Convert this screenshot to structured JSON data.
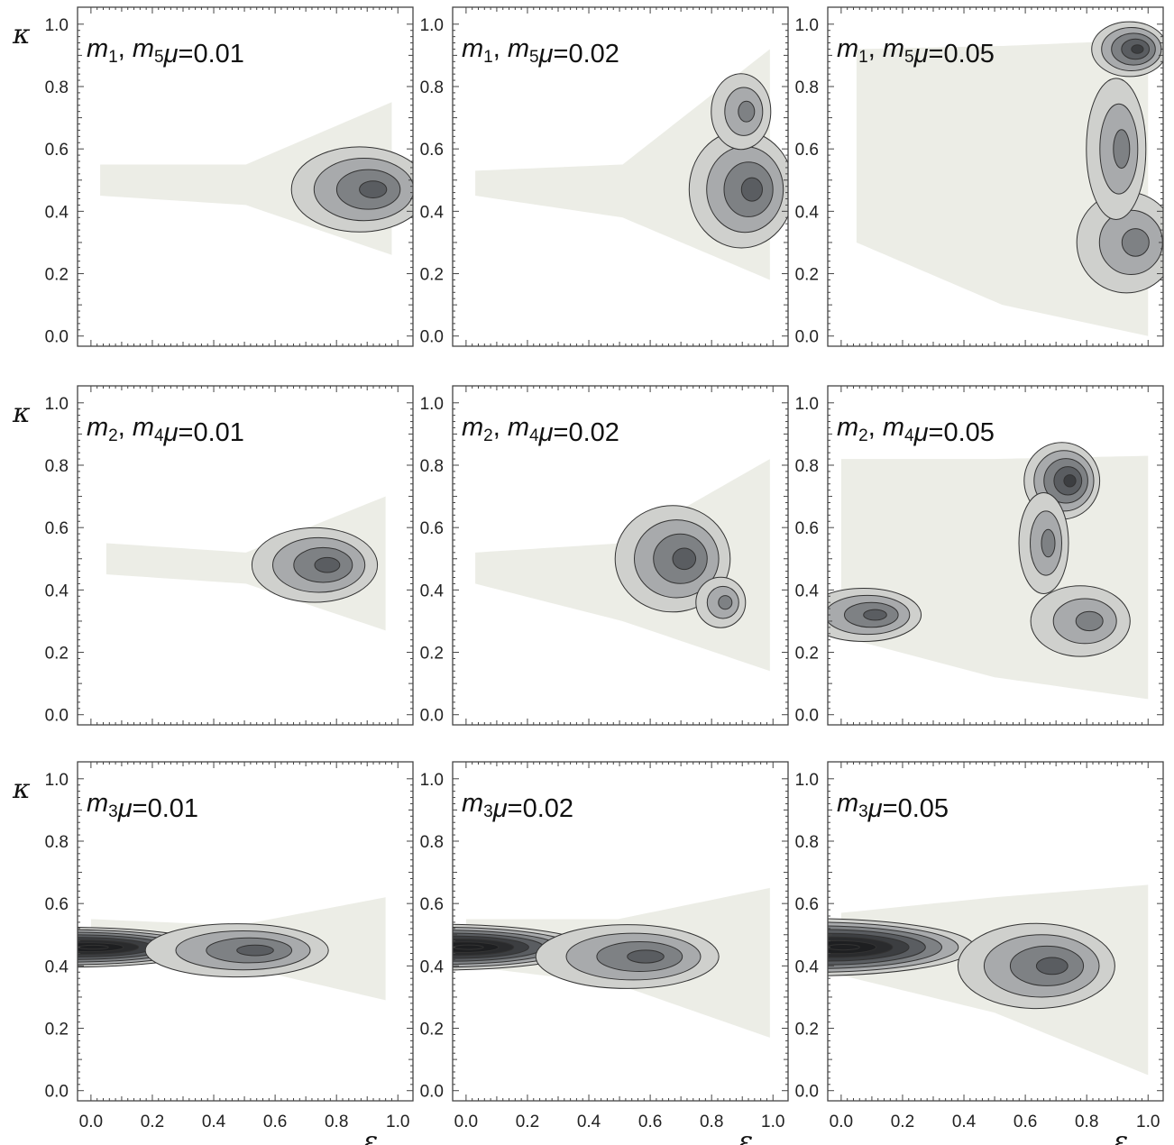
{
  "chart_data": {
    "type": "contour",
    "layout": "3x3 grid of filled contour panels",
    "xlabel": "ε",
    "ylabel": "κ",
    "xlim": [
      0,
      1
    ],
    "ylim": [
      0,
      1
    ],
    "x_ticks": [
      "0.0",
      "0.2",
      "0.4",
      "0.6",
      "0.8",
      "1.0"
    ],
    "y_ticks": [
      "0.0",
      "0.2",
      "0.4",
      "0.6",
      "0.8",
      "1.0"
    ],
    "colors": {
      "background": "#ffffff",
      "level_fills": [
        "#ecede6",
        "#cfd0cd",
        "#a8aaac",
        "#7e8184",
        "#5a5d61",
        "#3c3e41",
        "#2a2b2d",
        "#1e1f21"
      ],
      "contour_line": "#333333",
      "frame": "#444444"
    },
    "panels": [
      {
        "row": 0,
        "col": 0,
        "masses": "m1, m5",
        "mu_label": "μ=0.01",
        "show_y_label": true,
        "show_x_label": false,
        "support": {
          "x_range": [
            0.03,
            0.98
          ],
          "y_top": [
            0.55,
            0.55,
            0.75
          ],
          "y_bottom": [
            0.45,
            0.42,
            0.26
          ]
        },
        "peaks": [
          {
            "x": 0.93,
            "y": 0.47,
            "levels": 4,
            "sx": 0.26,
            "sy": 0.16
          }
        ]
      },
      {
        "row": 0,
        "col": 1,
        "masses": "m1, m5",
        "mu_label": "μ=0.02",
        "show_y_label": false,
        "show_x_label": false,
        "support": {
          "x_range": [
            0.03,
            0.99
          ],
          "y_top": [
            0.53,
            0.55,
            0.92
          ],
          "y_bottom": [
            0.45,
            0.38,
            0.18
          ]
        },
        "peaks": [
          {
            "x": 0.94,
            "y": 0.47,
            "levels": 4,
            "sx": 0.2,
            "sy": 0.22
          },
          {
            "x": 0.92,
            "y": 0.72,
            "levels": 3,
            "sx": 0.12,
            "sy": 0.15
          }
        ]
      },
      {
        "row": 0,
        "col": 2,
        "masses": "m1, m5",
        "mu_label": "μ=0.05",
        "show_y_label": false,
        "show_x_label": false,
        "support": {
          "x_range": [
            0.05,
            1.0
          ],
          "y_top": [
            0.92,
            0.93,
            0.95
          ],
          "y_bottom": [
            0.3,
            0.1,
            0.0
          ]
        },
        "peaks": [
          {
            "x": 0.97,
            "y": 0.92,
            "levels": 5,
            "sx": 0.14,
            "sy": 0.1
          },
          {
            "x": 0.97,
            "y": 0.3,
            "levels": 3,
            "sx": 0.2,
            "sy": 0.2
          },
          {
            "x": 0.92,
            "y": 0.6,
            "levels": 3,
            "sx": 0.12,
            "sy": 0.28
          }
        ]
      },
      {
        "row": 1,
        "col": 0,
        "masses": "m2, m4",
        "mu_label": "μ=0.01",
        "show_y_label": true,
        "show_x_label": false,
        "support": {
          "x_range": [
            0.05,
            0.96
          ],
          "y_top": [
            0.55,
            0.52,
            0.7
          ],
          "y_bottom": [
            0.45,
            0.42,
            0.27
          ]
        },
        "peaks": [
          {
            "x": 0.78,
            "y": 0.48,
            "levels": 4,
            "sx": 0.24,
            "sy": 0.14
          }
        ]
      },
      {
        "row": 1,
        "col": 1,
        "masses": "m2, m4",
        "mu_label": "μ=0.02",
        "show_y_label": false,
        "show_x_label": false,
        "support": {
          "x_range": [
            0.03,
            0.99
          ],
          "y_top": [
            0.52,
            0.55,
            0.82
          ],
          "y_bottom": [
            0.42,
            0.3,
            0.14
          ]
        },
        "peaks": [
          {
            "x": 0.72,
            "y": 0.5,
            "levels": 4,
            "sx": 0.22,
            "sy": 0.2
          },
          {
            "x": 0.85,
            "y": 0.36,
            "levels": 3,
            "sx": 0.1,
            "sy": 0.1
          }
        ]
      },
      {
        "row": 1,
        "col": 2,
        "masses": "m2, m4",
        "mu_label": "μ=0.05",
        "show_y_label": false,
        "show_x_label": false,
        "support": {
          "x_range": [
            0.0,
            1.0
          ],
          "y_top": [
            0.82,
            0.82,
            0.83
          ],
          "y_bottom": [
            0.25,
            0.12,
            0.05
          ]
        },
        "peaks": [
          {
            "x": 0.75,
            "y": 0.75,
            "levels": 5,
            "sx": 0.14,
            "sy": 0.14
          },
          {
            "x": 0.12,
            "y": 0.32,
            "levels": 4,
            "sx": 0.22,
            "sy": 0.1
          },
          {
            "x": 0.82,
            "y": 0.3,
            "levels": 3,
            "sx": 0.2,
            "sy": 0.14
          },
          {
            "x": 0.68,
            "y": 0.55,
            "levels": 3,
            "sx": 0.1,
            "sy": 0.2
          }
        ]
      },
      {
        "row": 2,
        "col": 0,
        "masses": "m3",
        "mu_label": "μ=0.01",
        "show_y_label": true,
        "show_x_label": true,
        "support": {
          "x_range": [
            0.0,
            0.96
          ],
          "y_top": [
            0.55,
            0.53,
            0.62
          ],
          "y_bottom": [
            0.42,
            0.4,
            0.29
          ]
        },
        "peaks": [
          {
            "x": 0.02,
            "y": 0.46,
            "levels": 8,
            "sx": 0.55,
            "sy": 0.07
          },
          {
            "x": 0.55,
            "y": 0.45,
            "levels": 4,
            "sx": 0.35,
            "sy": 0.1
          }
        ]
      },
      {
        "row": 2,
        "col": 1,
        "masses": "m3",
        "mu_label": "μ=0.02",
        "show_y_label": false,
        "show_x_label": true,
        "support": {
          "x_range": [
            0.0,
            0.99
          ],
          "y_top": [
            0.55,
            0.55,
            0.65
          ],
          "y_bottom": [
            0.4,
            0.34,
            0.17
          ]
        },
        "peaks": [
          {
            "x": 0.02,
            "y": 0.46,
            "levels": 8,
            "sx": 0.55,
            "sy": 0.08
          },
          {
            "x": 0.6,
            "y": 0.43,
            "levels": 4,
            "sx": 0.35,
            "sy": 0.12
          }
        ]
      },
      {
        "row": 2,
        "col": 2,
        "masses": "m3",
        "mu_label": "μ=0.05",
        "show_y_label": false,
        "show_x_label": true,
        "support": {
          "x_range": [
            0.0,
            1.0
          ],
          "y_top": [
            0.57,
            0.62,
            0.66
          ],
          "y_bottom": [
            0.37,
            0.25,
            0.05
          ]
        },
        "peaks": [
          {
            "x": 0.02,
            "y": 0.46,
            "levels": 8,
            "sx": 0.6,
            "sy": 0.1
          },
          {
            "x": 0.7,
            "y": 0.4,
            "levels": 4,
            "sx": 0.3,
            "sy": 0.16
          }
        ]
      }
    ]
  }
}
